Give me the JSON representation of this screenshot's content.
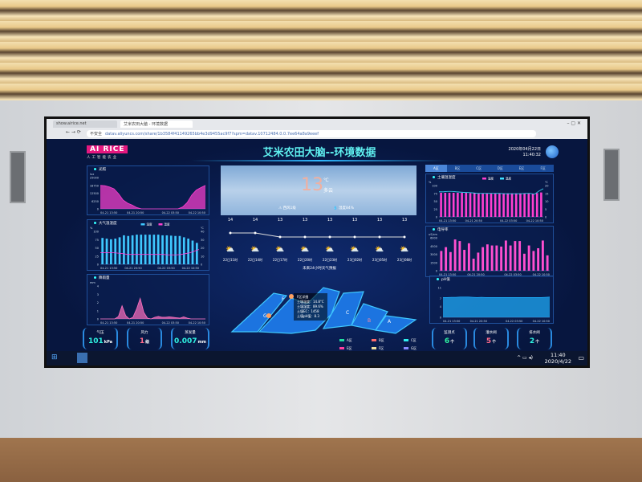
{
  "browser": {
    "tabs": [
      {
        "label": "show.airice.net"
      },
      {
        "label": "艾米农田大脑 - 环境数据"
      }
    ],
    "security_label": "不安全",
    "url": "datav.aliyuncs.com/share/1b3584f41149265bb4e3d9455ac9f7?spm=datav.10712484.0.0.7ee64a8a9eeef"
  },
  "header": {
    "logo": "AI RICE",
    "logo_sub": "人工智能农业",
    "title": "艾米农田大脑--环境数据",
    "date": "2020年04月22日",
    "time": "11:40:32"
  },
  "weather": {
    "temp": "13",
    "unit": "℃",
    "desc": "多云",
    "wind": "西风1级",
    "humidity": "湿度84%",
    "hours": [
      {
        "label": "22日11时",
        "temp": 14
      },
      {
        "label": "22日14时",
        "temp": 14
      },
      {
        "label": "22日17时",
        "temp": 13
      },
      {
        "label": "22日20时",
        "temp": 13
      },
      {
        "label": "22日23时",
        "temp": 13
      },
      {
        "label": "23日02时",
        "temp": 13
      },
      {
        "label": "23日05时",
        "temp": 13
      },
      {
        "label": "23日08时",
        "temp": 13
      }
    ],
    "caption": "未来24小时天气预报",
    "icon": "partly-cloudy-icon"
  },
  "stats_left": [
    {
      "label": "气压",
      "value": "101",
      "unit": "kPa",
      "color": "#2ff0e0"
    },
    {
      "label": "风力",
      "value": "1",
      "unit": "级",
      "color": "#ff6a8a"
    },
    {
      "label": "蒸发量",
      "value": "0.007",
      "unit": "mm",
      "color": "#2ff0e0"
    }
  ],
  "stats_right": [
    {
      "label": "监测点",
      "value": "6",
      "unit": "个",
      "color": "#2ff0a0"
    },
    {
      "label": "灌水阀",
      "value": "5",
      "unit": "个",
      "color": "#ff6a8a"
    },
    {
      "label": "排水阀",
      "value": "2",
      "unit": "个",
      "color": "#2ff0e0"
    }
  ],
  "zone_tabs": [
    "A区",
    "B区",
    "C区",
    "D区",
    "E区",
    "F区"
  ],
  "map": {
    "zones": [
      "A",
      "B",
      "C",
      "F",
      "G"
    ],
    "tooltip": {
      "title": "F区详细",
      "lines": [
        "土壤温度：14.8°C",
        "土壤湿度：89.6%",
        "土壤EC：1458",
        "土壤pH值：8.3"
      ]
    },
    "legend": [
      {
        "label": "A区",
        "color": "#1fe0a0"
      },
      {
        "label": "B区",
        "color": "#ff6a6a"
      },
      {
        "label": "C区",
        "color": "#2ff0f0"
      },
      {
        "label": "E区",
        "color": "#ff3fa0"
      },
      {
        "label": "F区",
        "color": "#f0e0a0"
      },
      {
        "label": "G区",
        "color": "#8a8aff"
      }
    ]
  },
  "taskbar": {
    "time": "11:40",
    "date": "2020/4/22"
  },
  "chart_data": [
    {
      "id": "light",
      "type": "area",
      "title": "光照",
      "ylabel": "lux",
      "ylim": [
        0,
        25000
      ],
      "yticks": [
        0,
        6250,
        12500,
        18750,
        25000
      ],
      "xticks": [
        "04-21 13:50",
        "04-21 20:50",
        "04-22 03:50",
        "04-22 10:50"
      ],
      "series": [
        {
          "values": [
            18750,
            18500,
            17500,
            16000,
            12000,
            7000,
            4500,
            3000,
            1000,
            0,
            0,
            0,
            0,
            0,
            0,
            0,
            0,
            0,
            1500,
            5000,
            11000,
            15000,
            17000,
            18750
          ],
          "color": "#ff3fd0"
        }
      ]
    },
    {
      "id": "air",
      "type": "bar",
      "title": "大气温湿度",
      "ylabel": "%",
      "ylabel2": "℃",
      "ylim": [
        0,
        100
      ],
      "ylim2": [
        0,
        40
      ],
      "yticks": [
        0,
        25,
        50,
        75,
        100
      ],
      "yticks2": [
        0,
        10,
        20,
        30,
        40
      ],
      "xticks": [
        "04-21 13:50",
        "04-21 20:50",
        "04-22 03:50",
        "04-22 10:50"
      ],
      "series": [
        {
          "name": "湿度",
          "values": [
            80,
            78,
            76,
            78,
            82,
            88,
            86,
            88,
            90,
            90,
            90,
            90,
            90,
            90,
            88,
            88,
            87,
            86,
            86,
            82,
            78,
            72,
            65
          ],
          "color": "#3fc8ff"
        },
        {
          "name": "温度",
          "type": "line",
          "axis": 2,
          "values": [
            14,
            14,
            14,
            14,
            13.5,
            13,
            12,
            12,
            12,
            12,
            12,
            12,
            12,
            12,
            12,
            11.5,
            11.5,
            11.5,
            12,
            13,
            14,
            16,
            18
          ],
          "color": "#ff3fd0"
        }
      ]
    },
    {
      "id": "rain",
      "type": "area",
      "title": "降雨量",
      "ylabel": "mm",
      "ylim": [
        0,
        4
      ],
      "yticks": [
        0,
        1,
        2,
        3,
        4
      ],
      "xticks": [
        "04-21 13:50",
        "04-21 20:50",
        "04-22 03:50",
        "04-22 10:50"
      ],
      "series": [
        {
          "values": [
            0,
            0,
            0,
            0,
            0,
            0.3,
            1.6,
            0.4,
            0,
            0.2,
            1.2,
            2.5,
            0.8,
            0.1,
            0,
            0.2,
            0.3,
            0.2,
            0.2,
            0.25,
            0.2,
            0.15,
            0.1,
            0.25,
            0.1,
            0,
            0,
            0,
            0,
            0
          ],
          "color": "#ff70c0"
        }
      ]
    },
    {
      "id": "soil",
      "type": "bar",
      "title": "土壤温湿度",
      "ylabel": "%",
      "ylabel2": "℃",
      "ylim": [
        0,
        100
      ],
      "ylim2": [
        0,
        20
      ],
      "yticks": [
        0,
        25,
        50,
        75,
        100
      ],
      "yticks2": [
        0,
        5,
        10,
        15,
        20
      ],
      "xticks": [
        "04-21 13:50",
        "04-21 20:50",
        "04-22 03:50",
        "04-22 10:50"
      ],
      "series": [
        {
          "name": "湿度",
          "values": [
            77,
            77,
            77,
            77,
            77,
            77,
            77,
            76,
            76,
            75,
            75,
            75,
            75,
            75,
            75,
            75,
            75,
            75,
            75,
            75,
            75,
            75,
            74,
            76,
            78
          ],
          "color": "#ff3fd0"
        },
        {
          "name": "温度",
          "type": "line",
          "axis": 2,
          "values": [
            16,
            16,
            16.3,
            16.3,
            16,
            15.8,
            15.6,
            15.5,
            15.3,
            15,
            15,
            15,
            15,
            15,
            15,
            14.8,
            14.8,
            14.8,
            14.8,
            14.8,
            15,
            15,
            14.5,
            16.5,
            18
          ],
          "color": "#3fe0ff"
        }
      ]
    },
    {
      "id": "ec",
      "type": "bar",
      "title": "电导率",
      "ylabel": "uS/cm",
      "ylim": [
        0,
        6000
      ],
      "yticks": [
        0,
        1500,
        3000,
        4500,
        6000
      ],
      "xticks": [
        "04-21 13:50",
        "04-21 20:50",
        "04-22 03:50",
        "04-22 10:50"
      ],
      "series": [
        {
          "values": [
            3600,
            4300,
            3400,
            5700,
            5400,
            3800,
            5000,
            2200,
            3300,
            4300,
            4800,
            4600,
            4600,
            4400,
            5500,
            4600,
            5400,
            5400,
            3100,
            4600,
            3600,
            4100,
            5500,
            2800
          ],
          "color": "#ff4fd0"
        }
      ]
    },
    {
      "id": "ph",
      "type": "area",
      "title": "pH值",
      "ylim": [
        0,
        11
      ],
      "yticks": [
        0,
        4,
        7,
        11
      ],
      "xticks": [
        "04-21 13:50",
        "04-21 20:50",
        "04-22 03:50",
        "04-22 10:50"
      ],
      "series": [
        {
          "values": [
            7.3,
            7.3,
            7.4,
            7.4,
            7.5,
            7.5,
            7.5,
            7.4,
            7.3,
            7.4,
            7.3,
            7.3,
            7.3,
            7.3,
            7.3,
            7.3,
            7.3,
            7.3,
            7.3,
            7.3,
            7.3,
            7.3,
            7.3,
            7.3,
            7.4,
            7.5
          ],
          "color": "#1fb0ff"
        }
      ]
    }
  ]
}
